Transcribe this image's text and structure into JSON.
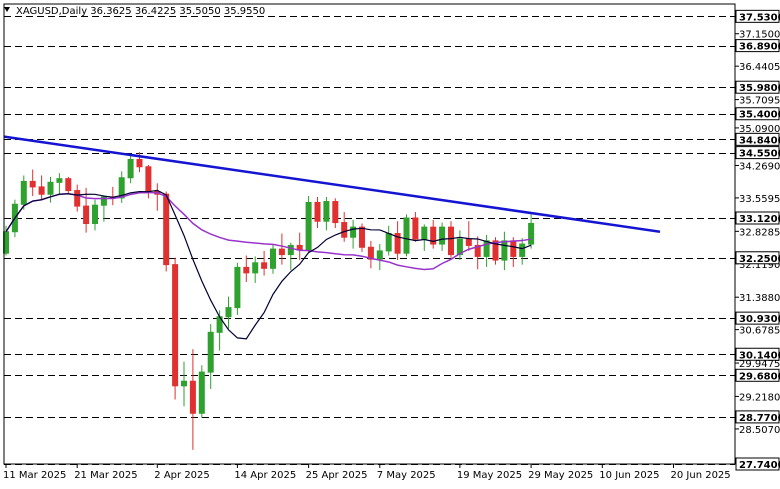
{
  "chart_data": {
    "type": "candlestick",
    "symbol": "XAGUSD,Daily",
    "ohlc_header": [
      "36.3625",
      "36.4225",
      "35.5050",
      "35.9550"
    ],
    "ylim": [
      27.74,
      37.8
    ],
    "y_ticks": [
      "37.1500",
      "36.4405",
      "35.7095",
      "35.0900",
      "34.2690",
      "33.5595",
      "32.8285",
      "32.1190",
      "31.3880",
      "30.6785",
      "29.9475",
      "29.2180",
      "28.5070"
    ],
    "levels": [
      {
        "value": 37.53,
        "label": "37.5300"
      },
      {
        "value": 36.89,
        "label": "36.8900"
      },
      {
        "value": 35.98,
        "label": "35.9800"
      },
      {
        "value": 35.4,
        "label": "35.4000"
      },
      {
        "value": 34.84,
        "label": "34.8400"
      },
      {
        "value": 34.55,
        "label": "34.5500"
      },
      {
        "value": 33.12,
        "label": "33.1200"
      },
      {
        "value": 32.25,
        "label": "32.2500"
      },
      {
        "value": 30.93,
        "label": "30.9300"
      },
      {
        "value": 30.14,
        "label": "30.1400"
      },
      {
        "value": 29.68,
        "label": "29.6800"
      },
      {
        "value": 28.77,
        "label": "28.7700"
      },
      {
        "value": 27.74,
        "label": "27.7400"
      }
    ],
    "x_labels": [
      {
        "index": 0,
        "label": "11 Mar 2025"
      },
      {
        "index": 8,
        "label": "21 Mar 2025"
      },
      {
        "index": 17,
        "label": "2 Apr 2025"
      },
      {
        "index": 26,
        "label": "14 Apr 2025"
      },
      {
        "index": 34,
        "label": "25 Apr 2025"
      },
      {
        "index": 42,
        "label": "7 May 2025"
      },
      {
        "index": 51,
        "label": "19 May 2025"
      },
      {
        "index": 59,
        "label": "29 May 2025"
      },
      {
        "index": 67,
        "label": "10 Jun 2025"
      },
      {
        "index": 75,
        "label": "20 Jun 2025"
      }
    ],
    "candles": [
      [
        32.35,
        32.95,
        32.3,
        32.82
      ],
      [
        32.82,
        33.52,
        32.7,
        33.42
      ],
      [
        33.42,
        34.05,
        33.3,
        33.92
      ],
      [
        33.92,
        34.18,
        33.6,
        33.8
      ],
      [
        33.8,
        34.05,
        33.5,
        33.64
      ],
      [
        33.64,
        34.02,
        33.46,
        33.9
      ],
      [
        33.9,
        34.1,
        33.62,
        33.98
      ],
      [
        33.98,
        34.02,
        33.66,
        33.72
      ],
      [
        33.72,
        33.85,
        33.26,
        33.38
      ],
      [
        33.38,
        33.78,
        32.8,
        33.0
      ],
      [
        33.0,
        33.52,
        32.85,
        33.4
      ],
      [
        33.4,
        33.62,
        33.04,
        33.58
      ],
      [
        33.58,
        33.8,
        33.4,
        33.56
      ],
      [
        33.56,
        34.14,
        33.45,
        34.0
      ],
      [
        34.0,
        34.52,
        33.88,
        34.4
      ],
      [
        34.4,
        34.56,
        34.12,
        34.24
      ],
      [
        34.24,
        34.28,
        33.55,
        33.7
      ],
      [
        33.7,
        33.88,
        33.28,
        33.64
      ],
      [
        33.64,
        33.7,
        31.95,
        32.1
      ],
      [
        32.1,
        32.25,
        29.15,
        29.45
      ],
      [
        29.45,
        29.98,
        29.0,
        29.55
      ],
      [
        29.55,
        30.25,
        28.05,
        28.85
      ],
      [
        28.85,
        29.9,
        28.75,
        29.75
      ],
      [
        29.75,
        30.8,
        29.38,
        30.62
      ],
      [
        30.62,
        31.1,
        30.22,
        30.96
      ],
      [
        30.96,
        31.4,
        30.7,
        31.16
      ],
      [
        31.16,
        32.14,
        31.0,
        32.04
      ],
      [
        32.04,
        32.3,
        31.72,
        31.92
      ],
      [
        31.92,
        32.28,
        31.7,
        32.14
      ],
      [
        32.14,
        32.4,
        31.86,
        32.02
      ],
      [
        32.02,
        32.55,
        31.9,
        32.44
      ],
      [
        32.44,
        32.78,
        32.1,
        32.32
      ],
      [
        32.32,
        32.58,
        31.98,
        32.52
      ],
      [
        32.52,
        32.8,
        32.2,
        32.42
      ],
      [
        32.42,
        33.6,
        32.35,
        33.46
      ],
      [
        33.46,
        33.58,
        32.9,
        33.05
      ],
      [
        33.05,
        33.58,
        32.85,
        33.48
      ],
      [
        33.48,
        33.55,
        32.9,
        33.02
      ],
      [
        33.02,
        33.25,
        32.6,
        32.7
      ],
      [
        32.7,
        33.08,
        32.45,
        32.92
      ],
      [
        32.92,
        33.0,
        32.38,
        32.48
      ],
      [
        32.48,
        32.62,
        32.02,
        32.22
      ],
      [
        32.22,
        32.55,
        31.98,
        32.4
      ],
      [
        32.4,
        32.95,
        32.3,
        32.78
      ],
      [
        32.78,
        33.05,
        32.2,
        32.35
      ],
      [
        32.35,
        33.2,
        32.28,
        33.12
      ],
      [
        33.12,
        33.25,
        32.6,
        32.66
      ],
      [
        32.66,
        32.98,
        32.4,
        32.92
      ],
      [
        32.92,
        33.08,
        32.45,
        32.55
      ],
      [
        32.55,
        33.02,
        32.4,
        32.92
      ],
      [
        32.92,
        33.05,
        32.25,
        32.32
      ],
      [
        32.32,
        32.85,
        32.2,
        32.66
      ],
      [
        32.66,
        33.05,
        32.4,
        32.52
      ],
      [
        32.52,
        32.72,
        32.0,
        32.28
      ],
      [
        32.28,
        32.75,
        32.05,
        32.62
      ],
      [
        32.62,
        32.7,
        32.1,
        32.2
      ],
      [
        32.2,
        32.82,
        31.98,
        32.62
      ],
      [
        32.62,
        32.7,
        32.05,
        32.28
      ],
      [
        32.28,
        32.68,
        32.1,
        32.55
      ],
      [
        32.55,
        33.2,
        32.45,
        33.0
      ]
    ],
    "ma_fast_label": "",
    "ma_slow_label": "",
    "colors": {
      "bull": "#2ea12e",
      "bear": "#e03030",
      "trend": "#1414d2",
      "ma_fast": "#000033",
      "ma_slow": "#9933cc",
      "level": "#000000"
    }
  }
}
